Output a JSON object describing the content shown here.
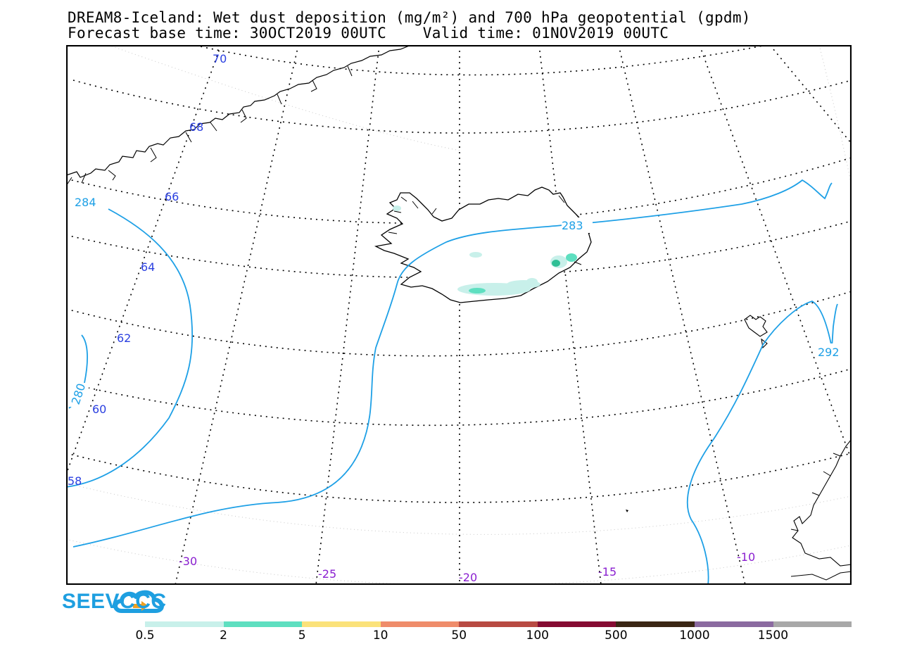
{
  "title": {
    "line1": "DREAM8-Iceland: Wet dust deposition (mg/m²) and 700 hPa geopotential (gpdm)",
    "line2": "Forecast base time: 30OCT2019 00UTC    Valid time: 01NOV2019 00UTC"
  },
  "map": {
    "latitude_labels": [
      "70",
      "68",
      "66",
      "64",
      "62",
      "60",
      "58"
    ],
    "longitude_labels": [
      "-30",
      "-25",
      "-20",
      "-15",
      "-10"
    ],
    "contour_labels": [
      "284",
      "283",
      "280",
      "292"
    ],
    "colors": {
      "latitude_label": "#2a3fe0",
      "longitude_label": "#8a1fd0",
      "contour": "#1ea0e6",
      "deposition_light": "#c8f0ea",
      "deposition_mid": "#5edfc0",
      "deposition_dark": "#2fbf95"
    }
  },
  "logo": {
    "text": "SEEVCCC",
    "icon": "cloud-arrow-icon"
  },
  "colorbar": {
    "labels": [
      "0.5",
      "2",
      "5",
      "10",
      "50",
      "100",
      "500",
      "1000",
      "1500"
    ],
    "colors": [
      "#c8f0ea",
      "#5edfc0",
      "#fbe27a",
      "#ef8c6a",
      "#b84a42",
      "#850b32",
      "#3a2614",
      "#8b6aa0",
      "#a8a8a8"
    ]
  }
}
